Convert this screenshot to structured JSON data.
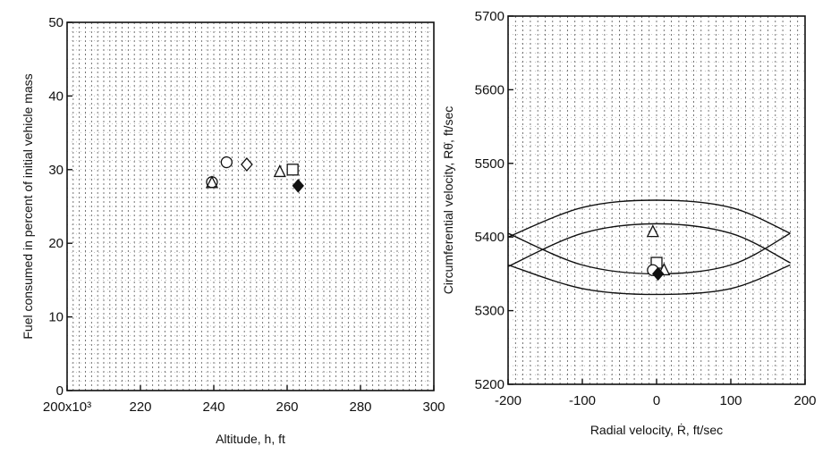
{
  "chart_data": [
    {
      "type": "scatter",
      "title": "",
      "xlabel": "Altitude, h, ft",
      "ylabel": "Fuel consumed in percent of initial vehicle mass",
      "xlim": [
        200,
        300
      ],
      "ylim": [
        0,
        50
      ],
      "x_ticks": [
        "200x10³",
        "220",
        "240",
        "260",
        "280",
        "300"
      ],
      "y_ticks": [
        "0",
        "10",
        "20",
        "30",
        "40",
        "50"
      ],
      "grid": true,
      "points": [
        {
          "x": 239.5,
          "y": 28.3,
          "marker": "triangle-circle"
        },
        {
          "x": 243.5,
          "y": 31.0,
          "marker": "circle"
        },
        {
          "x": 249.0,
          "y": 30.7,
          "marker": "diamond"
        },
        {
          "x": 258.0,
          "y": 29.8,
          "marker": "triangle"
        },
        {
          "x": 261.5,
          "y": 30.0,
          "marker": "square"
        },
        {
          "x": 263.0,
          "y": 27.8,
          "marker": "filled-diamond"
        }
      ]
    },
    {
      "type": "scatter",
      "title": "",
      "xlabel": "Radial velocity, Ṙ, ft/sec",
      "ylabel": "Circumferential velocity, Rθ̇, ft/sec",
      "xlim": [
        -200,
        200
      ],
      "ylim": [
        5200,
        5700
      ],
      "x_ticks": [
        "-200",
        "-100",
        "0",
        "100",
        "200"
      ],
      "y_ticks": [
        "5200",
        "5300",
        "5400",
        "5500",
        "5600",
        "5700"
      ],
      "grid": true,
      "envelopes": [
        {
          "x": [
            -200,
            -100,
            0,
            100,
            180
          ],
          "y": [
            5400,
            5440,
            5450,
            5440,
            5405
          ]
        },
        {
          "x": [
            -200,
            -100,
            0,
            100,
            180
          ],
          "y": [
            5360,
            5405,
            5418,
            5405,
            5365
          ]
        },
        {
          "x": [
            -200,
            -100,
            0,
            100,
            180
          ],
          "y": [
            5405,
            5362,
            5350,
            5362,
            5405
          ]
        },
        {
          "x": [
            -200,
            -100,
            0,
            100,
            180
          ],
          "y": [
            5362,
            5330,
            5322,
            5330,
            5362
          ]
        }
      ],
      "points": [
        {
          "x": -5,
          "y": 5408,
          "marker": "triangle"
        },
        {
          "x": 0,
          "y": 5365,
          "marker": "square"
        },
        {
          "x": -5,
          "y": 5355,
          "marker": "circle"
        },
        {
          "x": 10,
          "y": 5356,
          "marker": "triangle"
        },
        {
          "x": 2,
          "y": 5350,
          "marker": "filled-diamond"
        }
      ]
    }
  ]
}
